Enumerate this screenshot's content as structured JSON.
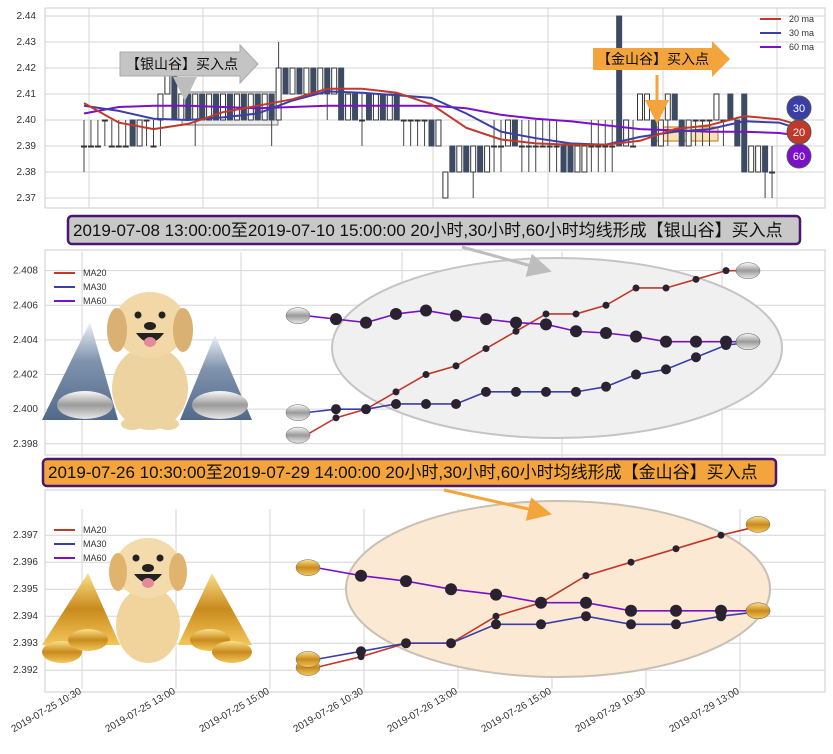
{
  "colors": {
    "ma20": "#c0392b",
    "ma30": "#3a3fa8",
    "ma60": "#7a10c8",
    "candle_down": "#3d4a63",
    "silver_box": "#c8c8c8",
    "gold_box": "#f3a43c",
    "title_border": "#4b1670",
    "silver_ellipse": "#f0f0f0",
    "gold_ellipse": "#fbe9d3"
  },
  "chart_data": [
    {
      "type": "candlestick",
      "ylim": [
        2.365,
        2.445
      ],
      "yticks": [
        "2.37",
        "2.38",
        "2.39",
        "2.40",
        "2.41",
        "2.42",
        "2.43",
        "2.44"
      ],
      "legend": [
        {
          "label": "20 ma",
          "color": "#c0392b"
        },
        {
          "label": "30 ma",
          "color": "#3a3fa8"
        },
        {
          "label": "60 ma",
          "color": "#7a10c8"
        }
      ],
      "candles_ohlc": [
        [
          2.39,
          2.4,
          2.38,
          2.39
        ],
        [
          2.39,
          2.4,
          2.39,
          2.39
        ],
        [
          2.39,
          2.4,
          2.39,
          2.39
        ],
        [
          2.4,
          2.4,
          2.39,
          2.4
        ],
        [
          2.39,
          2.4,
          2.39,
          2.39
        ],
        [
          2.39,
          2.4,
          2.39,
          2.39
        ],
        [
          2.39,
          2.4,
          2.39,
          2.39
        ],
        [
          2.4,
          2.4,
          2.39,
          2.39
        ],
        [
          2.39,
          2.4,
          2.39,
          2.4
        ],
        [
          2.4,
          2.4,
          2.39,
          2.4
        ],
        [
          2.39,
          2.4,
          2.39,
          2.39
        ],
        [
          2.4,
          2.41,
          2.39,
          2.41
        ],
        [
          2.41,
          2.42,
          2.41,
          2.42
        ],
        [
          2.42,
          2.42,
          2.4,
          2.4
        ],
        [
          2.4,
          2.41,
          2.4,
          2.41
        ],
        [
          2.41,
          2.41,
          2.4,
          2.4
        ],
        [
          2.4,
          2.41,
          2.39,
          2.41
        ],
        [
          2.41,
          2.41,
          2.4,
          2.4
        ],
        [
          2.4,
          2.41,
          2.4,
          2.41
        ],
        [
          2.41,
          2.41,
          2.4,
          2.4
        ],
        [
          2.4,
          2.41,
          2.4,
          2.41
        ],
        [
          2.41,
          2.41,
          2.4,
          2.4
        ],
        [
          2.4,
          2.41,
          2.4,
          2.41
        ],
        [
          2.41,
          2.41,
          2.4,
          2.4
        ],
        [
          2.4,
          2.41,
          2.4,
          2.41
        ],
        [
          2.41,
          2.41,
          2.4,
          2.4
        ],
        [
          2.4,
          2.41,
          2.4,
          2.41
        ],
        [
          2.41,
          2.41,
          2.39,
          2.4
        ],
        [
          2.4,
          2.43,
          2.4,
          2.42
        ],
        [
          2.42,
          2.42,
          2.41,
          2.41
        ],
        [
          2.41,
          2.42,
          2.41,
          2.42
        ],
        [
          2.42,
          2.42,
          2.41,
          2.41
        ],
        [
          2.41,
          2.42,
          2.41,
          2.42
        ],
        [
          2.42,
          2.42,
          2.41,
          2.41
        ],
        [
          2.41,
          2.42,
          2.41,
          2.42
        ],
        [
          2.42,
          2.42,
          2.4,
          2.41
        ],
        [
          2.41,
          2.42,
          2.41,
          2.42
        ],
        [
          2.42,
          2.42,
          2.4,
          2.4
        ],
        [
          2.4,
          2.41,
          2.4,
          2.41
        ],
        [
          2.41,
          2.41,
          2.4,
          2.4
        ],
        [
          2.4,
          2.41,
          2.39,
          2.4
        ],
        [
          2.41,
          2.41,
          2.4,
          2.4
        ],
        [
          2.4,
          2.41,
          2.4,
          2.41
        ],
        [
          2.41,
          2.41,
          2.4,
          2.4
        ],
        [
          2.4,
          2.41,
          2.4,
          2.41
        ],
        [
          2.41,
          2.41,
          2.4,
          2.4
        ],
        [
          2.4,
          2.4,
          2.39,
          2.4
        ],
        [
          2.4,
          2.4,
          2.39,
          2.4
        ],
        [
          2.4,
          2.4,
          2.39,
          2.4
        ],
        [
          2.4,
          2.4,
          2.39,
          2.4
        ],
        [
          2.4,
          2.4,
          2.39,
          2.39
        ],
        [
          2.39,
          2.4,
          2.39,
          2.4
        ],
        [
          2.37,
          2.38,
          2.37,
          2.38
        ],
        [
          2.39,
          2.39,
          2.38,
          2.38
        ],
        [
          2.38,
          2.39,
          2.38,
          2.39
        ],
        [
          2.39,
          2.39,
          2.38,
          2.38
        ],
        [
          2.38,
          2.39,
          2.37,
          2.39
        ],
        [
          2.39,
          2.39,
          2.38,
          2.38
        ],
        [
          2.38,
          2.39,
          2.38,
          2.39
        ],
        [
          2.39,
          2.4,
          2.38,
          2.39
        ],
        [
          2.39,
          2.4,
          2.38,
          2.39
        ],
        [
          2.39,
          2.4,
          2.39,
          2.4
        ],
        [
          2.4,
          2.4,
          2.39,
          2.39
        ],
        [
          2.39,
          2.4,
          2.38,
          2.39
        ],
        [
          2.39,
          2.4,
          2.38,
          2.39
        ],
        [
          2.39,
          2.4,
          2.38,
          2.39
        ],
        [
          2.39,
          2.4,
          2.39,
          2.39
        ],
        [
          2.39,
          2.4,
          2.38,
          2.39
        ],
        [
          2.39,
          2.4,
          2.38,
          2.39
        ],
        [
          2.39,
          2.39,
          2.38,
          2.38
        ],
        [
          2.39,
          2.39,
          2.38,
          2.38
        ],
        [
          2.38,
          2.39,
          2.38,
          2.39
        ],
        [
          2.38,
          2.39,
          2.38,
          2.39
        ],
        [
          2.39,
          2.4,
          2.38,
          2.39
        ],
        [
          2.39,
          2.4,
          2.38,
          2.39
        ],
        [
          2.39,
          2.4,
          2.38,
          2.39
        ],
        [
          2.39,
          2.4,
          2.38,
          2.39
        ],
        [
          2.44,
          2.44,
          2.39,
          2.39
        ],
        [
          2.39,
          2.4,
          2.39,
          2.4
        ],
        [
          2.39,
          2.4,
          2.39,
          2.39
        ],
        [
          2.4,
          2.41,
          2.4,
          2.41
        ],
        [
          2.4,
          2.41,
          2.4,
          2.41
        ],
        [
          2.4,
          2.4,
          2.39,
          2.39
        ],
        [
          2.39,
          2.4,
          2.39,
          2.4
        ],
        [
          2.4,
          2.41,
          2.39,
          2.41
        ],
        [
          2.41,
          2.41,
          2.4,
          2.4
        ],
        [
          2.4,
          2.4,
          2.39,
          2.39
        ],
        [
          2.39,
          2.4,
          2.39,
          2.4
        ],
        [
          2.4,
          2.4,
          2.39,
          2.4
        ],
        [
          2.4,
          2.4,
          2.39,
          2.4
        ],
        [
          2.4,
          2.4,
          2.39,
          2.4
        ],
        [
          2.4,
          2.41,
          2.4,
          2.41
        ],
        [
          2.4,
          2.4,
          2.39,
          2.4
        ],
        [
          2.41,
          2.41,
          2.4,
          2.4
        ],
        [
          2.4,
          2.4,
          2.39,
          2.39
        ],
        [
          2.41,
          2.41,
          2.38,
          2.38
        ],
        [
          2.38,
          2.39,
          2.38,
          2.39
        ],
        [
          2.38,
          2.39,
          2.38,
          2.39
        ],
        [
          2.39,
          2.39,
          2.37,
          2.38
        ],
        [
          2.38,
          2.39,
          2.37,
          2.38
        ]
      ],
      "ma_x": [
        0,
        5,
        10,
        15,
        20,
        25,
        30,
        35,
        40,
        45,
        50,
        55,
        60,
        65,
        70,
        75,
        80,
        85,
        90,
        95,
        100,
        103
      ],
      "ma20": [
        2.4065,
        2.399,
        2.3965,
        2.3985,
        2.403,
        2.4055,
        2.408,
        2.412,
        2.412,
        2.4105,
        2.406,
        2.397,
        2.3925,
        2.391,
        2.3905,
        2.3905,
        2.392,
        2.3965,
        2.398,
        2.4015,
        2.4003,
        2.398
      ],
      "ma30": [
        2.4055,
        2.4035,
        2.4005,
        2.4,
        2.401,
        2.4025,
        2.4075,
        2.411,
        2.4105,
        2.4095,
        2.4085,
        2.4025,
        2.3955,
        2.393,
        2.391,
        2.3905,
        2.3935,
        2.3955,
        2.3965,
        2.3995,
        2.399,
        2.3965
      ],
      "ma60": [
        2.4025,
        2.405,
        2.4055,
        2.4055,
        2.405,
        2.4045,
        2.405,
        2.4055,
        2.4055,
        2.4055,
        2.4055,
        2.4045,
        2.402,
        2.4005,
        2.3995,
        2.398,
        2.3965,
        2.396,
        2.3955,
        2.3955,
        2.395,
        2.394
      ],
      "callouts": {
        "silver": "【银山谷】买入点",
        "gold": "【金山谷】买入点"
      },
      "badges": [
        {
          "label": "30",
          "color": "#3a3fa8"
        },
        {
          "label": "20",
          "color": "#c0392b"
        },
        {
          "label": "60",
          "color": "#7a10c8"
        }
      ]
    },
    {
      "type": "line",
      "title": "2019-07-08 13:00:00至2019-07-10 15:00:00 20小时,30小时,60小时均线形成【银山谷】买入点",
      "ylim": [
        2.3977,
        2.4085
      ],
      "yticks": [
        "2.398",
        "2.400",
        "2.402",
        "2.404",
        "2.406",
        "2.408"
      ],
      "series": [
        {
          "name": "MA20",
          "color": "#c0392b",
          "values": [
            2.3985,
            2.3995,
            2.4,
            2.401,
            2.402,
            2.4025,
            2.4035,
            2.4045,
            2.4055,
            2.4055,
            2.406,
            2.407,
            2.407,
            2.4075,
            2.408,
            2.408
          ]
        },
        {
          "name": "MA30",
          "color": "#3a3fa8",
          "values": [
            2.3998,
            2.4,
            2.4,
            2.4003,
            2.4003,
            2.4003,
            2.401,
            2.401,
            2.401,
            2.401,
            2.4013,
            2.402,
            2.4023,
            2.403,
            2.4037,
            2.4039
          ]
        },
        {
          "name": "MA60",
          "color": "#7a10c8",
          "values": [
            2.4054,
            2.4052,
            2.405,
            2.4055,
            2.4057,
            2.4054,
            2.4052,
            2.405,
            2.4049,
            2.4045,
            2.4044,
            2.4042,
            2.4039,
            2.4039,
            2.4039,
            2.4039
          ]
        }
      ]
    },
    {
      "type": "line",
      "title": "2019-07-26 10:30:00至2019-07-29 14:00:00 20小时,30小时,60小时均线形成【金山谷】买入点",
      "ylim": [
        2.3916,
        2.3976
      ],
      "yticks": [
        "2.392",
        "2.393",
        "2.394",
        "2.395",
        "2.396",
        "2.397"
      ],
      "xticks": [
        "2019-07-25 10:30",
        "2019-07-25 13:00",
        "2019-07-25 15:00",
        "2019-07-26 10:30",
        "2019-07-26 13:00",
        "2019-07-26 15:00",
        "2019-07-29 10:30",
        "2019-07-29 13:00"
      ],
      "series": [
        {
          "name": "MA20",
          "color": "#c0392b",
          "values": [
            2.3921,
            2.3925,
            2.393,
            2.393,
            2.394,
            2.3945,
            2.3955,
            2.396,
            2.3965,
            2.397,
            2.3974
          ]
        },
        {
          "name": "MA30",
          "color": "#3a3fa8",
          "values": [
            2.3924,
            2.3927,
            2.393,
            2.393,
            2.3937,
            2.3937,
            2.394,
            2.3937,
            2.3937,
            2.394,
            2.3942
          ]
        },
        {
          "name": "MA60",
          "color": "#7a10c8",
          "values": [
            2.3958,
            2.3955,
            2.3953,
            2.395,
            2.3948,
            2.3945,
            2.3945,
            2.3942,
            2.3942,
            2.3942,
            2.3942
          ]
        }
      ]
    }
  ]
}
